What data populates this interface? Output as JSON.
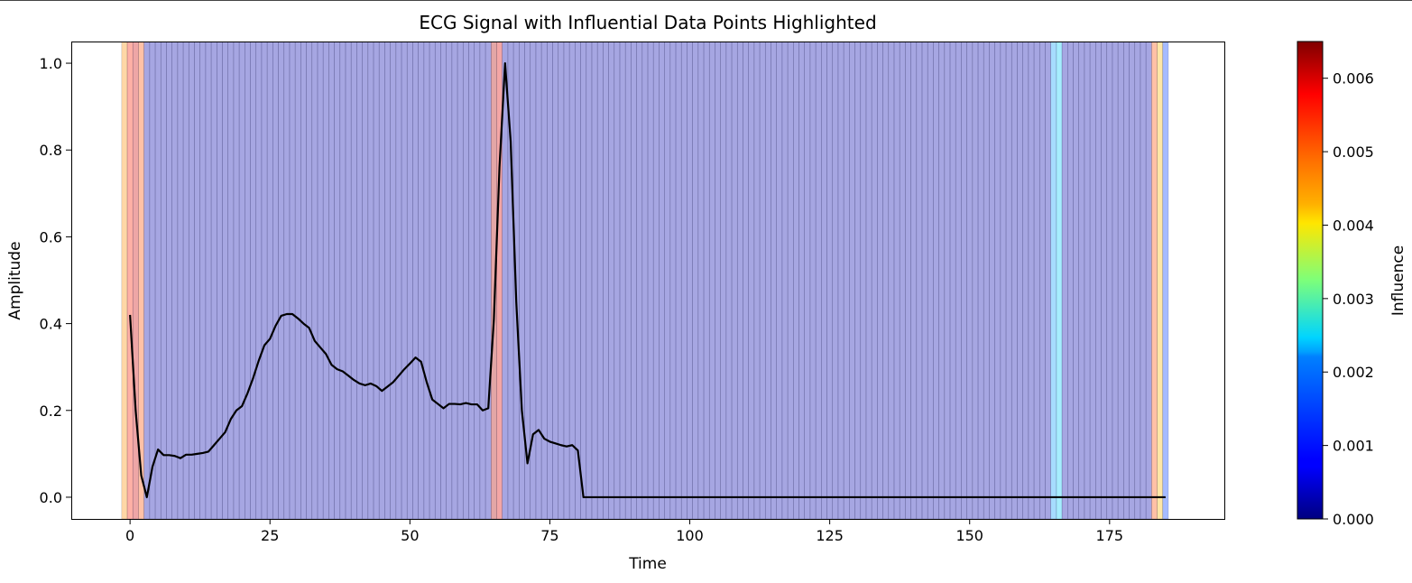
{
  "chart_data": {
    "type": "line",
    "title": "ECG Signal with Influential Data Points Highlighted",
    "xlabel": "Time",
    "ylabel": "Amplitude",
    "xlim": [
      -10.5,
      195.5
    ],
    "ylim": [
      -0.05,
      1.05
    ],
    "xticks": [
      0,
      25,
      50,
      75,
      100,
      125,
      150,
      175
    ],
    "yticks": [
      0.0,
      0.2,
      0.4,
      0.6,
      0.8,
      1.0
    ],
    "ytick_labels": [
      "0.0",
      "0.2",
      "0.4",
      "0.6",
      "0.8",
      "1.0"
    ],
    "line_color": "#000000",
    "series": [
      {
        "x": [
          0,
          1,
          2,
          3,
          4,
          5,
          6,
          7,
          8,
          9,
          10,
          11,
          12,
          13,
          14,
          15,
          16,
          17,
          18,
          19,
          20,
          21,
          22,
          23,
          24,
          25,
          26,
          27,
          28,
          29,
          30,
          31,
          32,
          33,
          34,
          35,
          36,
          37,
          38,
          39,
          40,
          41,
          42,
          43,
          44,
          45,
          46,
          47,
          48,
          49,
          50,
          51,
          52,
          53,
          54,
          55,
          56,
          57,
          58,
          59,
          60,
          61,
          62,
          63,
          64,
          65,
          66,
          67,
          68,
          69,
          70,
          71,
          72,
          73,
          74,
          75,
          76,
          77,
          78,
          79,
          80,
          81,
          185
        ],
        "y": [
          0.42,
          0.2,
          0.05,
          0.0,
          0.07,
          0.11,
          0.097,
          0.097,
          0.095,
          0.09,
          0.098,
          0.098,
          0.1,
          0.102,
          0.105,
          0.12,
          0.135,
          0.15,
          0.18,
          0.2,
          0.21,
          0.24,
          0.275,
          0.315,
          0.35,
          0.365,
          0.395,
          0.418,
          0.422,
          0.422,
          0.412,
          0.4,
          0.39,
          0.36,
          0.345,
          0.33,
          0.305,
          0.295,
          0.29,
          0.28,
          0.27,
          0.262,
          0.258,
          0.262,
          0.256,
          0.245,
          0.255,
          0.265,
          0.28,
          0.295,
          0.308,
          0.322,
          0.312,
          0.265,
          0.225,
          0.215,
          0.205,
          0.215,
          0.215,
          0.214,
          0.217,
          0.214,
          0.214,
          0.2,
          0.205,
          0.41,
          0.76,
          1.0,
          0.82,
          0.45,
          0.2,
          0.078,
          0.145,
          0.155,
          0.135,
          0.128,
          0.124,
          0.12,
          0.117,
          0.12,
          0.108,
          0.0,
          0.0
        ]
      }
    ],
    "influence": {
      "colormap": "jet",
      "vmin": 0.0,
      "vmax": 0.0065,
      "band_alpha": 0.35,
      "indices_start": -1,
      "indices_end": 185,
      "default_value": 0.00028,
      "overrides": {
        "-1": 0.0048,
        "0": 0.0055,
        "1": 0.006,
        "2": 0.0052,
        "65": 0.0062,
        "66": 0.0059,
        "165": 0.0018,
        "166": 0.0021,
        "183": 0.0052,
        "184": 0.0045,
        "185": 0.0012
      }
    },
    "colorbar": {
      "label": "Influence",
      "ticks": [
        0.0,
        0.001,
        0.002,
        0.003,
        0.004,
        0.005,
        0.006
      ],
      "tick_labels": [
        "0.000",
        "0.001",
        "0.002",
        "0.003",
        "0.004",
        "0.005",
        "0.006"
      ]
    },
    "grid": false,
    "legend": "none"
  }
}
